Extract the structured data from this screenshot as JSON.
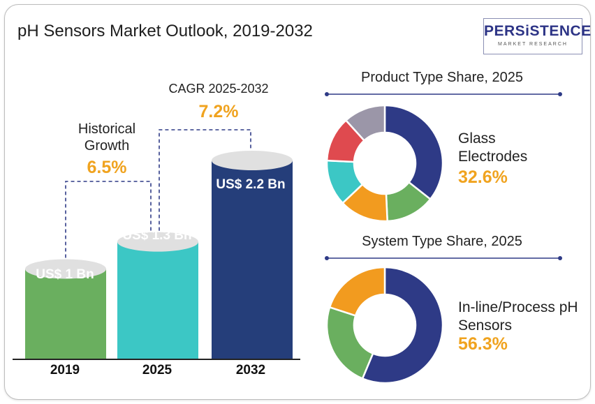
{
  "title": "pH Sensors Market Outlook, 2019-2032",
  "logo": {
    "main": "PERSiSTENCE",
    "sub": "MARKET RESEARCH"
  },
  "cagr": {
    "label": "CAGR 2025-2032",
    "value": "7.2%"
  },
  "historical": {
    "label": "Historical Growth",
    "value": "6.5%"
  },
  "colors": {
    "bar_2019": "#6aaf5f",
    "bar_2025": "#3cc7c5",
    "bar_2032": "#253e7a",
    "accent": "#f0a31f",
    "navy": "#2e3a86"
  },
  "chart_data": [
    {
      "type": "bar",
      "categories": [
        "2019",
        "2025",
        "2032"
      ],
      "values": [
        1,
        1.3,
        2.2
      ],
      "value_labels": [
        "US$ 1 Bn",
        "US$ 1.3 Bn",
        "US$ 2.2 Bn"
      ],
      "colors": [
        "#6aaf5f",
        "#3cc7c5",
        "#253e7a"
      ],
      "ylim": [
        0,
        2.2
      ]
    },
    {
      "type": "pie",
      "title": "Product Type Share, 2025",
      "highlight_label": "Glass Electrodes",
      "highlight_value": "32.6%",
      "values": [
        32.6,
        12.5,
        12.5,
        11.7,
        11.5,
        10.7
      ],
      "colors": [
        "#2e3a86",
        "#6aaf5f",
        "#f29b1f",
        "#3cc7c5",
        "#df4a4f",
        "#9b96a8"
      ]
    },
    {
      "type": "pie",
      "title": "System Type Share, 2025",
      "highlight_label": "In-line/Process pH Sensors",
      "highlight_value": "56.3%",
      "values": [
        56.3,
        23.7,
        20.0
      ],
      "colors": [
        "#2e3a86",
        "#6aaf5f",
        "#f29b1f"
      ]
    }
  ]
}
